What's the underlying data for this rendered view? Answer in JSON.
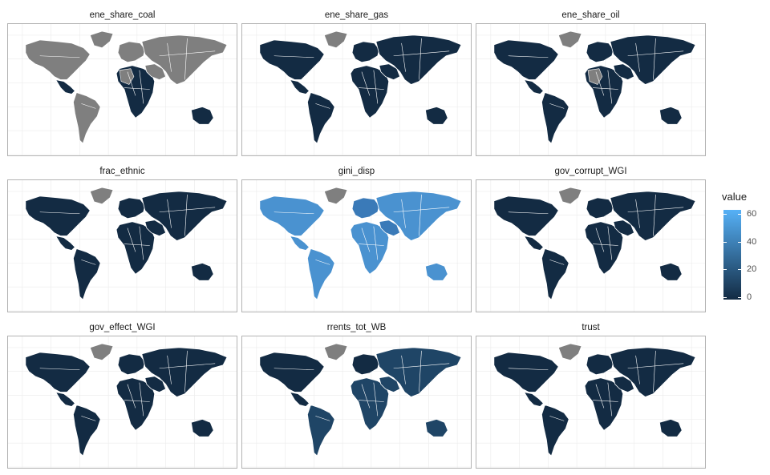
{
  "chart_data": {
    "type": "choropleth-facets",
    "ncol": 3,
    "panels": [
      {
        "title": "ene_share_coal",
        "colors": {
          "na": "gray",
          "americas": "dark",
          "south_america": "gray",
          "europe": "gray",
          "africa": "mixed",
          "middle_east": "gray",
          "russia_asia": "gray",
          "oceania": "dark",
          "greenland": "gray"
        }
      },
      {
        "title": "ene_share_gas",
        "colors": {
          "na": "dark",
          "americas": "dark",
          "south_america": "dark",
          "europe": "dark",
          "africa": "dark",
          "middle_east": "dark",
          "russia_asia": "dark",
          "oceania": "dark",
          "greenland": "gray"
        }
      },
      {
        "title": "ene_share_oil",
        "colors": {
          "na": "dark",
          "americas": "dark",
          "south_america": "dark",
          "europe": "dark",
          "africa": "mixed",
          "middle_east": "dark",
          "russia_asia": "dark",
          "oceania": "dark",
          "greenland": "gray"
        }
      },
      {
        "title": "frac_ethnic",
        "colors": {
          "na": "dark",
          "americas": "dark",
          "south_america": "dark",
          "europe": "dark",
          "africa": "dark",
          "middle_east": "dark",
          "russia_asia": "dark",
          "oceania": "dark",
          "greenland": "gray"
        }
      },
      {
        "title": "gini_disp",
        "colors": {
          "na": "light",
          "americas": "light",
          "south_america": "light",
          "europe": "mid",
          "africa": "light",
          "middle_east": "mid",
          "russia_asia": "light",
          "oceania": "light",
          "greenland": "gray"
        }
      },
      {
        "title": "gov_corrupt_WGI",
        "colors": {
          "na": "dark",
          "americas": "dark",
          "south_america": "dark",
          "europe": "dark",
          "africa": "dark",
          "middle_east": "dark",
          "russia_asia": "dark",
          "oceania": "dark",
          "greenland": "gray"
        }
      },
      {
        "title": "gov_effect_WGI",
        "colors": {
          "na": "dark",
          "americas": "dark",
          "south_america": "dark",
          "europe": "dark",
          "africa": "dark",
          "middle_east": "dark",
          "russia_asia": "dark",
          "oceania": "dark",
          "greenland": "gray"
        }
      },
      {
        "title": "rrents_tot_WB",
        "colors": {
          "na": "dark",
          "americas": "dark",
          "south_america": "darkmid",
          "europe": "dark",
          "africa": "darkmid",
          "middle_east": "darkmid",
          "russia_asia": "darkmid",
          "oceania": "darkmid",
          "greenland": "gray"
        }
      },
      {
        "title": "trust",
        "colors": {
          "na": "dark",
          "americas": "dark",
          "south_america": "dark",
          "europe": "dark",
          "africa": "dark",
          "middle_east": "dark",
          "russia_asia": "dark",
          "oceania": "dark",
          "greenland": "gray"
        }
      }
    ],
    "palette": {
      "dark": "#132b43",
      "darkmid": "#1f4566",
      "mid": "#3a7ab8",
      "light": "#4a92d0",
      "gray": "#7f7f7f",
      "mixed": "#132b43"
    },
    "legend": {
      "title": "value",
      "ticks": [
        "60",
        "40",
        "20",
        "0"
      ],
      "tick_values": [
        60,
        40,
        20,
        0
      ],
      "range": [
        -2,
        63
      ],
      "low_color": "#132b43",
      "high_color": "#56b1f7"
    }
  }
}
